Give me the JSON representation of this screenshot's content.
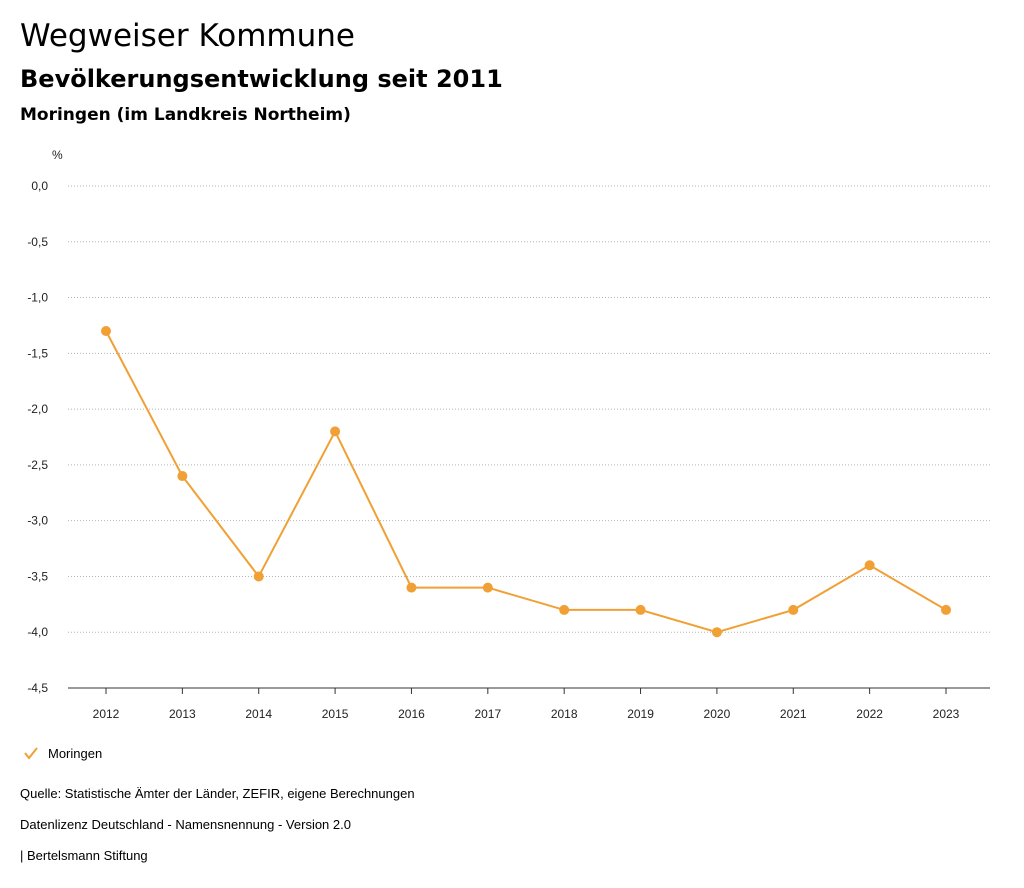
{
  "header": {
    "title": "Wegweiser Kommune",
    "subtitle": "Bevölkerungsentwicklung seit 2011",
    "region": "Moringen (im Landkreis Northeim)"
  },
  "legend": {
    "label": "Moringen",
    "icon": "check-icon"
  },
  "footer": {
    "source": "Quelle: Statistische Ämter der Länder, ZEFIR, eigene Berechnungen",
    "license": "Datenlizenz Deutschland - Namensnennung - Version 2.0",
    "publisher": "| Bertelsmann Stiftung"
  },
  "colors": {
    "series": "#f0a035",
    "grid": "#b5b5b5",
    "axis": "#333333"
  },
  "chart_data": {
    "type": "line",
    "title": "Bevölkerungsentwicklung seit 2011",
    "ylabel": "%",
    "xlabel": "",
    "ylim": [
      -4.5,
      0.0
    ],
    "yticks": [
      0.0,
      -0.5,
      -1.0,
      -1.5,
      -2.0,
      -2.5,
      -3.0,
      -3.5,
      -4.0,
      -4.5
    ],
    "ytick_labels": [
      "0,0",
      "-0,5",
      "-1,0",
      "-1,5",
      "-2,0",
      "-2,5",
      "-3,0",
      "-3,5",
      "-4,0",
      "-4,5"
    ],
    "categories": [
      "2012",
      "2013",
      "2014",
      "2015",
      "2016",
      "2017",
      "2018",
      "2019",
      "2020",
      "2021",
      "2022",
      "2023"
    ],
    "series": [
      {
        "name": "Moringen",
        "values": [
          -1.3,
          -2.6,
          -3.5,
          -2.2,
          -3.6,
          -3.6,
          -3.8,
          -3.8,
          -4.0,
          -3.8,
          -3.4,
          -3.8
        ]
      }
    ],
    "grid": true,
    "legend_position": "bottom-left"
  }
}
